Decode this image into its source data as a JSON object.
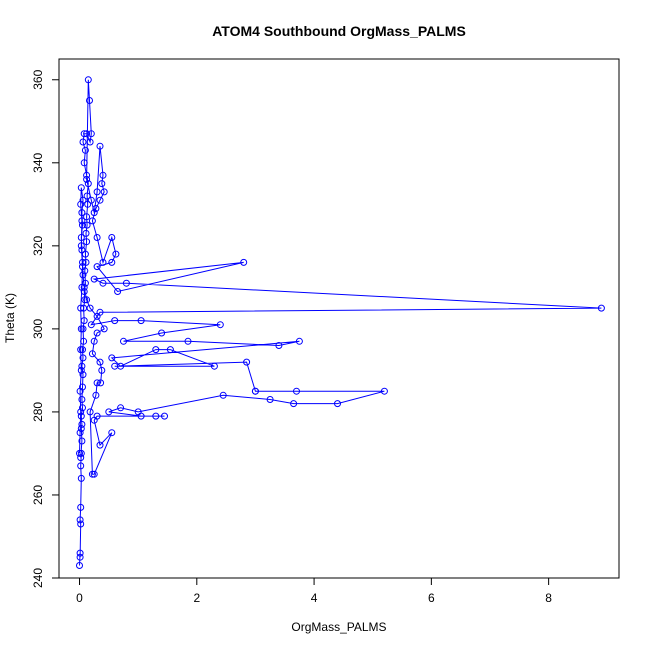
{
  "chart_data": {
    "type": "scatter",
    "title": "ATOM4 Southbound OrgMass_PALMS",
    "xlabel": "OrgMass_PALMS",
    "ylabel": "Theta (K)",
    "xlim": [
      -0.35,
      9.2
    ],
    "ylim": [
      240,
      365
    ],
    "xticks": [
      0,
      2,
      4,
      6,
      8
    ],
    "yticks": [
      240,
      260,
      280,
      300,
      320,
      340,
      360
    ],
    "grid": false,
    "legend": "none",
    "color": "#0000ff",
    "series": [
      {
        "points": [
          [
            0.0,
            243
          ],
          [
            0.01,
            246
          ],
          [
            0.01,
            245
          ],
          [
            0.02,
            253
          ],
          [
            0.01,
            254
          ],
          [
            0.02,
            257
          ],
          [
            0.03,
            264
          ],
          [
            0.02,
            267
          ],
          [
            0.03,
            270
          ],
          [
            0.02,
            269
          ],
          [
            0.04,
            273
          ],
          [
            0.03,
            276
          ],
          [
            0.04,
            277
          ],
          [
            0.03,
            279
          ],
          [
            0.05,
            281
          ],
          [
            0.04,
            283
          ],
          [
            0.05,
            286
          ],
          [
            0.06,
            289
          ],
          [
            0.04,
            291
          ],
          [
            0.06,
            293
          ],
          [
            0.05,
            295
          ],
          [
            0.07,
            297
          ],
          [
            0.06,
            300
          ],
          [
            0.08,
            302
          ],
          [
            0.07,
            305
          ],
          [
            0.09,
            307
          ],
          [
            0.08,
            309
          ],
          [
            0.1,
            311
          ],
          [
            0.09,
            314
          ],
          [
            0.11,
            316
          ],
          [
            0.1,
            318
          ],
          [
            0.12,
            321
          ],
          [
            0.11,
            323
          ],
          [
            0.13,
            325
          ],
          [
            0.12,
            327
          ],
          [
            0.14,
            330
          ],
          [
            0.13,
            332
          ],
          [
            0.15,
            335
          ],
          [
            0.12,
            337
          ],
          [
            0.08,
            340
          ],
          [
            0.1,
            343
          ],
          [
            0.06,
            345
          ],
          [
            0.08,
            347
          ],
          [
            0.12,
            347
          ],
          [
            0.18,
            345
          ],
          [
            0.2,
            347
          ],
          [
            0.17,
            355
          ],
          [
            0.15,
            360
          ],
          [
            0.12,
            336
          ],
          [
            0.2,
            331
          ],
          [
            0.25,
            328
          ],
          [
            0.3,
            333
          ],
          [
            0.35,
            344
          ],
          [
            0.4,
            337
          ],
          [
            0.38,
            335
          ],
          [
            0.42,
            333
          ],
          [
            0.35,
            331
          ],
          [
            0.28,
            329
          ],
          [
            0.22,
            326
          ],
          [
            0.3,
            322
          ],
          [
            0.4,
            316
          ],
          [
            0.55,
            322
          ],
          [
            0.62,
            318
          ],
          [
            0.55,
            316
          ],
          [
            0.3,
            315
          ],
          [
            0.65,
            309
          ],
          [
            2.8,
            316
          ],
          [
            0.25,
            312
          ],
          [
            0.4,
            311
          ],
          [
            0.8,
            311
          ],
          [
            8.9,
            305
          ],
          [
            0.35,
            304
          ],
          [
            0.2,
            301
          ],
          [
            0.6,
            302
          ],
          [
            1.05,
            302
          ],
          [
            2.4,
            301
          ],
          [
            1.4,
            299
          ],
          [
            0.75,
            297
          ],
          [
            1.85,
            297
          ],
          [
            3.4,
            296
          ],
          [
            3.75,
            297
          ],
          [
            0.55,
            293
          ],
          [
            0.7,
            291
          ],
          [
            1.3,
            295
          ],
          [
            1.55,
            295
          ],
          [
            2.3,
            291
          ],
          [
            0.6,
            291
          ],
          [
            2.85,
            292
          ],
          [
            3.0,
            285
          ],
          [
            3.0,
            285
          ],
          [
            3.7,
            285
          ],
          [
            5.2,
            285
          ],
          [
            4.4,
            282
          ],
          [
            3.65,
            282
          ],
          [
            3.25,
            283
          ],
          [
            2.45,
            284
          ],
          [
            1.0,
            280
          ],
          [
            0.7,
            281
          ],
          [
            0.5,
            280
          ],
          [
            1.05,
            279
          ],
          [
            1.3,
            279
          ],
          [
            1.45,
            279
          ],
          [
            0.3,
            279
          ],
          [
            0.25,
            278
          ],
          [
            0.35,
            272
          ],
          [
            0.55,
            275
          ],
          [
            0.25,
            265
          ],
          [
            0.22,
            265
          ],
          [
            0.18,
            280
          ],
          [
            0.28,
            284
          ],
          [
            0.3,
            287
          ],
          [
            0.36,
            287
          ],
          [
            0.38,
            290
          ],
          [
            0.35,
            292
          ],
          [
            0.22,
            294
          ],
          [
            0.25,
            297
          ],
          [
            0.3,
            299
          ],
          [
            0.42,
            300
          ],
          [
            0.3,
            303
          ],
          [
            0.18,
            305
          ],
          [
            0.12,
            307
          ],
          [
            0.08,
            310
          ],
          [
            0.06,
            313
          ],
          [
            0.05,
            316
          ],
          [
            0.04,
            319
          ],
          [
            0.03,
            322
          ],
          [
            0.05,
            325
          ],
          [
            0.04,
            328
          ],
          [
            0.06,
            331
          ],
          [
            0.03,
            334
          ],
          [
            0.02,
            330
          ],
          [
            0.04,
            326
          ],
          [
            0.03,
            320
          ],
          [
            0.05,
            315
          ],
          [
            0.04,
            310
          ],
          [
            0.02,
            305
          ],
          [
            0.03,
            300
          ],
          [
            0.02,
            295
          ],
          [
            0.03,
            290
          ],
          [
            0.01,
            285
          ],
          [
            0.02,
            280
          ],
          [
            0.01,
            275
          ],
          [
            0.0,
            270
          ]
        ]
      }
    ]
  }
}
